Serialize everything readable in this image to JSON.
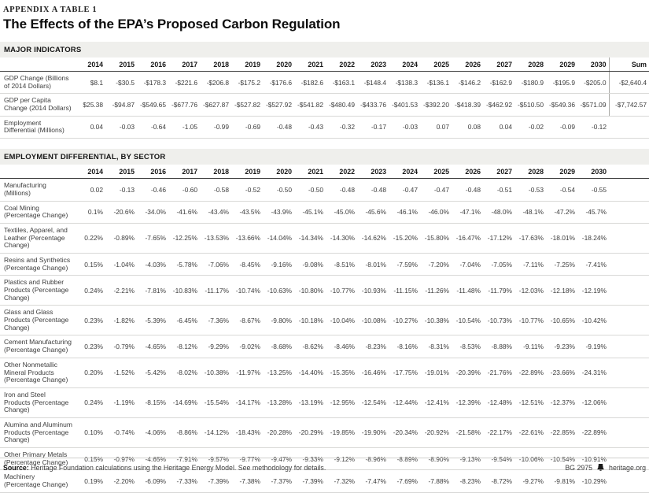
{
  "page": {
    "eyebrow": "APPENDIX A TABLE 1",
    "title": "The Effects of the EPA’s Proposed Carbon Regulation"
  },
  "table1": {
    "section_label": "MAJOR INDICATORS",
    "years": [
      "2014",
      "2015",
      "2016",
      "2017",
      "2018",
      "2019",
      "2020",
      "2021",
      "2022",
      "2023",
      "2024",
      "2025",
      "2026",
      "2027",
      "2028",
      "2029",
      "2030"
    ],
    "sum_label": "Sum",
    "rows": [
      {
        "label": "GDP Change (Billions of 2014 Dollars)",
        "values": [
          "$8.1",
          "-$30.5",
          "-$178.3",
          "-$221.6",
          "-$206.8",
          "-$175.2",
          "-$176.6",
          "-$182.6",
          "-$163.1",
          "-$148.4",
          "-$138.3",
          "-$136.1",
          "-$146.2",
          "-$162.9",
          "-$180.9",
          "-$195.9",
          "-$205.0"
        ],
        "sum": "-$2,640.4"
      },
      {
        "label": "GDP per Capita Change (2014 Dollars)",
        "values": [
          "$25.38",
          "-$94.87",
          "-$549.65",
          "-$677.76",
          "-$627.87",
          "-$527.82",
          "-$527.92",
          "-$541.82",
          "-$480.49",
          "-$433.76",
          "-$401.53",
          "-$392.20",
          "-$418.39",
          "-$462.92",
          "-$510.50",
          "-$549.36",
          "-$571.09"
        ],
        "sum": "-$7,742.57"
      },
      {
        "label": "Employment Differential (Millions)",
        "values": [
          "0.04",
          "-0.03",
          "-0.64",
          "-1.05",
          "-0.99",
          "-0.69",
          "-0.48",
          "-0.43",
          "-0.32",
          "-0.17",
          "-0.03",
          "0.07",
          "0.08",
          "0.04",
          "-0.02",
          "-0.09",
          "-0.12"
        ],
        "sum": ""
      }
    ]
  },
  "table2": {
    "section_label": "EMPLOYMENT DIFFERENTIAL, BY SECTOR",
    "years": [
      "2014",
      "2015",
      "2016",
      "2017",
      "2018",
      "2019",
      "2020",
      "2021",
      "2022",
      "2023",
      "2024",
      "2025",
      "2026",
      "2027",
      "2028",
      "2029",
      "2030"
    ],
    "sum_label": "",
    "rows": [
      {
        "label": "Manufacturing (Millions)",
        "values": [
          "0.02",
          "-0.13",
          "-0.46",
          "-0.60",
          "-0.58",
          "-0.52",
          "-0.50",
          "-0.50",
          "-0.48",
          "-0.48",
          "-0.47",
          "-0.47",
          "-0.48",
          "-0.51",
          "-0.53",
          "-0.54",
          "-0.55"
        ],
        "sum": ""
      },
      {
        "label": "Coal Mining (Percentage Change)",
        "values": [
          "0.1%",
          "-20.6%",
          "-34.0%",
          "-41.6%",
          "-43.4%",
          "-43.5%",
          "-43.9%",
          "-45.1%",
          "-45.0%",
          "-45.6%",
          "-46.1%",
          "-46.0%",
          "-47.1%",
          "-48.0%",
          "-48.1%",
          "-47.2%",
          "-45.7%"
        ],
        "sum": ""
      },
      {
        "label": "Textiles, Apparel, and Leather (Percentage Change)",
        "values": [
          "0.22%",
          "-0.89%",
          "-7.65%",
          "-12.25%",
          "-13.53%",
          "-13.66%",
          "-14.04%",
          "-14.34%",
          "-14.30%",
          "-14.62%",
          "-15.20%",
          "-15.80%",
          "-16.47%",
          "-17.12%",
          "-17.63%",
          "-18.01%",
          "-18.24%"
        ],
        "sum": ""
      },
      {
        "label": "Resins and Synthetics (Percentage Change)",
        "values": [
          "0.15%",
          "-1.04%",
          "-4.03%",
          "-5.78%",
          "-7.06%",
          "-8.45%",
          "-9.16%",
          "-9.08%",
          "-8.51%",
          "-8.01%",
          "-7.59%",
          "-7.20%",
          "-7.04%",
          "-7.05%",
          "-7.11%",
          "-7.25%",
          "-7.41%"
        ],
        "sum": ""
      },
      {
        "label": "Plastics and Rubber Products (Percentage Change)",
        "values": [
          "0.24%",
          "-2.21%",
          "-7.81%",
          "-10.83%",
          "-11.17%",
          "-10.74%",
          "-10.63%",
          "-10.80%",
          "-10.77%",
          "-10.93%",
          "-11.15%",
          "-11.26%",
          "-11.48%",
          "-11.79%",
          "-12.03%",
          "-12.18%",
          "-12.19%"
        ],
        "sum": ""
      },
      {
        "label": "Glass and Glass Products (Percentage Change)",
        "values": [
          "0.23%",
          "-1.82%",
          "-5.39%",
          "-6.45%",
          "-7.36%",
          "-8.67%",
          "-9.80%",
          "-10.18%",
          "-10.04%",
          "-10.08%",
          "-10.27%",
          "-10.38%",
          "-10.54%",
          "-10.73%",
          "-10.77%",
          "-10.65%",
          "-10.42%"
        ],
        "sum": ""
      },
      {
        "label": "Cement Manufacturing (Percentage Change)",
        "values": [
          "0.23%",
          "-0.79%",
          "-4.65%",
          "-8.12%",
          "-9.29%",
          "-9.02%",
          "-8.68%",
          "-8.62%",
          "-8.46%",
          "-8.23%",
          "-8.16%",
          "-8.31%",
          "-8.53%",
          "-8.88%",
          "-9.11%",
          "-9.23%",
          "-9.19%"
        ],
        "sum": ""
      },
      {
        "label": "Other Nonmetallic Mineral Products (Percentage Change)",
        "values": [
          "0.20%",
          "-1.52%",
          "-5.42%",
          "-8.02%",
          "-10.38%",
          "-11.97%",
          "-13.25%",
          "-14.40%",
          "-15.35%",
          "-16.46%",
          "-17.75%",
          "-19.01%",
          "-20.39%",
          "-21.76%",
          "-22.89%",
          "-23.66%",
          "-24.31%"
        ],
        "sum": ""
      },
      {
        "label": "Iron and Steel Products (Percentage Change)",
        "values": [
          "0.24%",
          "-1.19%",
          "-8.15%",
          "-14.69%",
          "-15.54%",
          "-14.17%",
          "-13.28%",
          "-13.19%",
          "-12.95%",
          "-12.54%",
          "-12.44%",
          "-12.41%",
          "-12.39%",
          "-12.48%",
          "-12.51%",
          "-12.37%",
          "-12.06%"
        ],
        "sum": ""
      },
      {
        "label": "Alumina and Aluminum Products (Percentage Change)",
        "values": [
          "0.10%",
          "-0.74%",
          "-4.06%",
          "-8.86%",
          "-14.12%",
          "-18.43%",
          "-20.28%",
          "-20.29%",
          "-19.85%",
          "-19.90%",
          "-20.34%",
          "-20.92%",
          "-21.58%",
          "-22.17%",
          "-22.61%",
          "-22.85%",
          "-22.89%"
        ],
        "sum": ""
      },
      {
        "label": "Other Primary Metals (Percentage Change)",
        "values": [
          "0.15%",
          "-0.97%",
          "-4.65%",
          "-7.91%",
          "-9.57%",
          "-9.77%",
          "-9.47%",
          "-9.33%",
          "-9.12%",
          "-8.96%",
          "-8.89%",
          "-8.90%",
          "-9.13%",
          "-9.54%",
          "-10.06%",
          "-10.54%",
          "-10.91%"
        ],
        "sum": ""
      },
      {
        "label": "Machinery (Percentage Change)",
        "values": [
          "0.19%",
          "-2.20%",
          "-6.09%",
          "-7.33%",
          "-7.39%",
          "-7.38%",
          "-7.37%",
          "-7.39%",
          "-7.32%",
          "-7.47%",
          "-7.69%",
          "-7.88%",
          "-8.23%",
          "-8.72%",
          "-9.27%",
          "-9.81%",
          "-10.29%"
        ],
        "sum": ""
      }
    ]
  },
  "footer": {
    "source_bold": "Source:",
    "source_text": " Heritage Foundation calculations using the Heritage Energy Model. See methodology for details.",
    "doc_id": "BG 2975",
    "site": "heritage.org",
    "bell_icon": "liberty-bell-icon"
  },
  "colors": {
    "band_bg": "#efefec",
    "header_rule": "#3a3a3a",
    "row_rule": "#d8d8d6",
    "text": "#3d3d3d",
    "title_text": "#0d0d0d"
  }
}
